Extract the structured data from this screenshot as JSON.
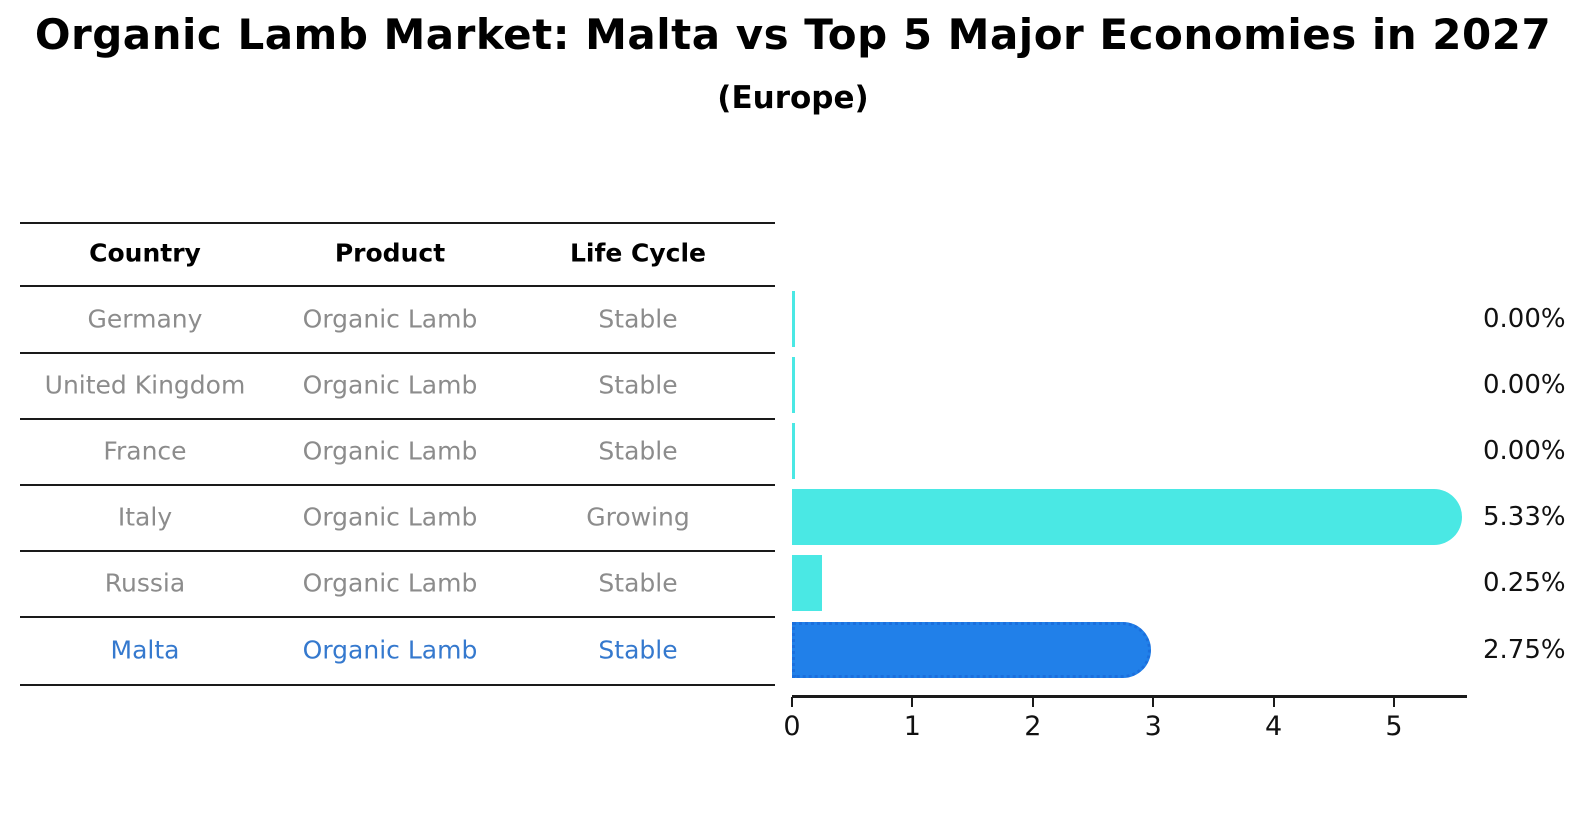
{
  "title": "Organic Lamb Market: Malta vs Top 5 Major Economies in 2027",
  "subtitle": "(Europe)",
  "table": {
    "headers": [
      "Country",
      "Product",
      "Life Cycle"
    ],
    "rows": [
      {
        "country": "Germany",
        "product": "Organic Lamb",
        "life_cycle": "Stable",
        "highlighted": false
      },
      {
        "country": "United Kingdom",
        "product": "Organic Lamb",
        "life_cycle": "Stable",
        "highlighted": false
      },
      {
        "country": "France",
        "product": "Organic Lamb",
        "life_cycle": "Stable",
        "highlighted": false
      },
      {
        "country": "Italy",
        "product": "Organic Lamb",
        "life_cycle": "Growing",
        "highlighted": false
      },
      {
        "country": "Russia",
        "product": "Organic Lamb",
        "life_cycle": "Stable",
        "highlighted": false
      },
      {
        "country": "Malta",
        "product": "Organic Lamb",
        "life_cycle": "Stable",
        "highlighted": true
      }
    ]
  },
  "chart_data": {
    "type": "bar",
    "orientation": "horizontal",
    "title": "Organic Lamb Market: Malta vs Top 5 Major Economies in 2027",
    "subtitle": "(Europe)",
    "categories": [
      "Germany",
      "United Kingdom",
      "France",
      "Italy",
      "Russia",
      "Malta"
    ],
    "values": [
      0.0,
      0.0,
      0.0,
      5.33,
      0.25,
      2.75
    ],
    "value_labels": [
      "0.00%",
      "0.00%",
      "0.00%",
      "5.33%",
      "0.25%",
      "2.75%"
    ],
    "x_ticks": [
      "0",
      "1",
      "2",
      "3",
      "4",
      "5"
    ],
    "xlim": [
      0,
      5.6
    ],
    "unit": "percent",
    "highlight_category": "Malta",
    "grid": false,
    "legend": null
  },
  "colors": {
    "background": "#ffffff",
    "bar_default": "#4ae8e4",
    "bar_highlight": "#2180e9",
    "bar_highlight_border": "#1b6fdd",
    "highlight_text": "#3579ce",
    "table_text": "#8c8c8c",
    "heading_text": "#000000",
    "axis": "#1a1a1a",
    "value_label_text": "#111111"
  }
}
